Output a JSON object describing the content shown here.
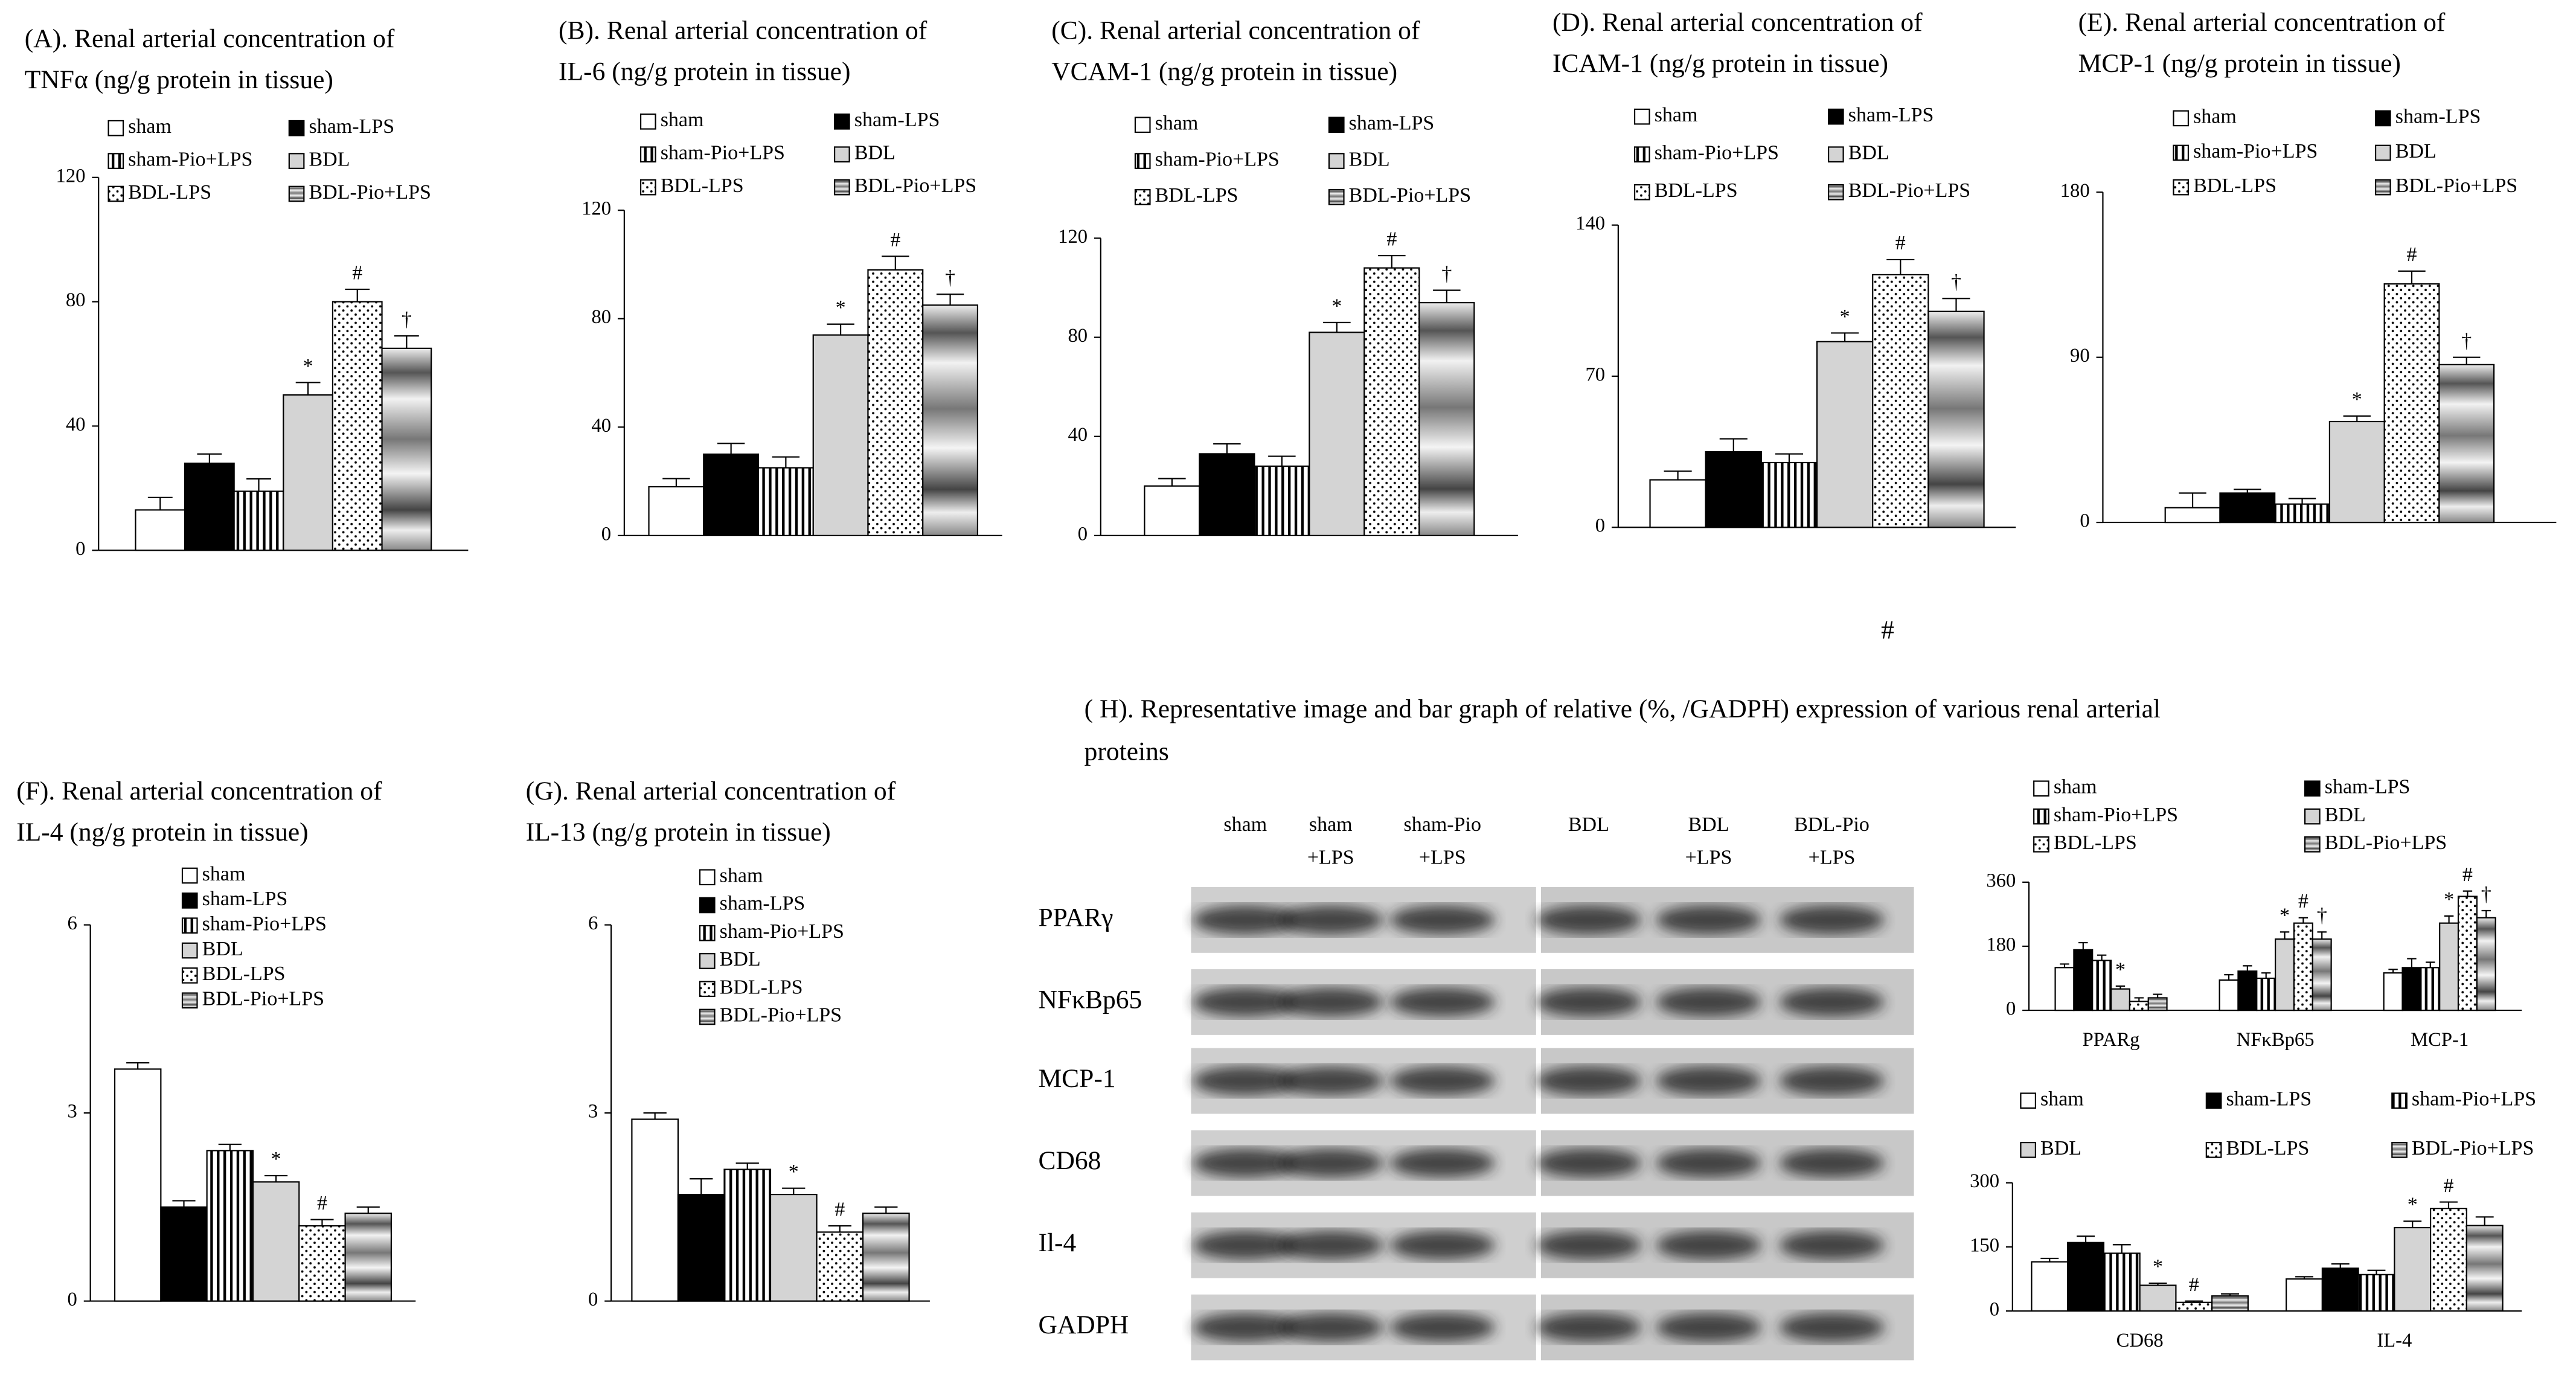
{
  "chart_data": [
    {
      "type": "bar",
      "title": [
        "(A). Renal arterial concentration of",
        "TNFα (ng/g protein in tissue)"
      ],
      "ylim": [
        0,
        120
      ],
      "yticks": [
        0,
        40,
        80,
        120
      ],
      "legend_columns": 2,
      "series": [
        {
          "name": "sham",
          "color": "#ffffff",
          "values": [
            13
          ],
          "errors": [
            4
          ]
        },
        {
          "name": "sham-LPS",
          "color": "#000000",
          "values": [
            28
          ],
          "errors": [
            3
          ]
        },
        {
          "name": "sham-Pio+LPS",
          "color": "#ffffff",
          "pattern": "vertical-stripes",
          "values": [
            19
          ],
          "errors": [
            4
          ]
        },
        {
          "name": "BDL",
          "color": "#d4d4d4",
          "values": [
            50
          ],
          "errors": [
            4
          ],
          "annotations": [
            "*"
          ]
        },
        {
          "name": "BDL-LPS",
          "color": "#ffffff",
          "pattern": "dots",
          "values": [
            80
          ],
          "errors": [
            4
          ],
          "annotations": [
            "#"
          ]
        },
        {
          "name": "BDL-Pio+LPS",
          "color": "#9a9a9a",
          "pattern": "bands",
          "values": [
            65
          ],
          "errors": [
            4
          ],
          "annotations": [
            "†"
          ]
        }
      ]
    },
    {
      "type": "bar",
      "title": [
        "(B). Renal arterial concentration of",
        "IL-6 (ng/g protein in tissue)"
      ],
      "ylim": [
        0,
        120
      ],
      "yticks": [
        0,
        40,
        80,
        120
      ],
      "legend_columns": 2,
      "series": [
        {
          "name": "sham",
          "color": "#ffffff",
          "values": [
            18
          ],
          "errors": [
            3
          ]
        },
        {
          "name": "sham-LPS",
          "color": "#000000",
          "values": [
            30
          ],
          "errors": [
            4
          ]
        },
        {
          "name": "sham-Pio+LPS",
          "color": "#ffffff",
          "pattern": "vertical-stripes",
          "values": [
            25
          ],
          "errors": [
            4
          ]
        },
        {
          "name": "BDL",
          "color": "#d4d4d4",
          "values": [
            74
          ],
          "errors": [
            4
          ],
          "annotations": [
            "*"
          ]
        },
        {
          "name": "BDL-LPS",
          "color": "#ffffff",
          "pattern": "dots",
          "values": [
            98
          ],
          "errors": [
            5
          ],
          "annotations": [
            "#"
          ]
        },
        {
          "name": "BDL-Pio+LPS",
          "color": "#9a9a9a",
          "pattern": "bands",
          "values": [
            85
          ],
          "errors": [
            4
          ],
          "annotations": [
            "†"
          ]
        }
      ]
    },
    {
      "type": "bar",
      "title": [
        "(C). Renal arterial concentration of",
        "VCAM-1 (ng/g protein in tissue)"
      ],
      "ylim": [
        0,
        120
      ],
      "yticks": [
        0,
        40,
        80,
        120
      ],
      "legend_columns": 2,
      "series": [
        {
          "name": "sham",
          "color": "#ffffff",
          "values": [
            20
          ],
          "errors": [
            3
          ]
        },
        {
          "name": "sham-LPS",
          "color": "#000000",
          "values": [
            33
          ],
          "errors": [
            4
          ]
        },
        {
          "name": "sham-Pio+LPS",
          "color": "#ffffff",
          "pattern": "vertical-stripes",
          "values": [
            28
          ],
          "errors": [
            4
          ]
        },
        {
          "name": "BDL",
          "color": "#d4d4d4",
          "values": [
            82
          ],
          "errors": [
            4
          ],
          "annotations": [
            "*"
          ]
        },
        {
          "name": "BDL-LPS",
          "color": "#ffffff",
          "pattern": "dots",
          "values": [
            108
          ],
          "errors": [
            5
          ],
          "annotations": [
            "#"
          ]
        },
        {
          "name": "BDL-Pio+LPS",
          "color": "#9a9a9a",
          "pattern": "bands",
          "values": [
            94
          ],
          "errors": [
            5
          ],
          "annotations": [
            "†"
          ]
        }
      ]
    },
    {
      "type": "bar",
      "title": [
        "(D). Renal arterial concentration of",
        "ICAM-1 (ng/g protein in tissue)"
      ],
      "ylim": [
        0,
        140
      ],
      "yticks": [
        0,
        70,
        140
      ],
      "legend_columns": 2,
      "series": [
        {
          "name": "sham",
          "color": "#ffffff",
          "values": [
            22
          ],
          "errors": [
            4
          ]
        },
        {
          "name": "sham-LPS",
          "color": "#000000",
          "values": [
            35
          ],
          "errors": [
            6
          ]
        },
        {
          "name": "sham-Pio+LPS",
          "color": "#ffffff",
          "pattern": "vertical-stripes",
          "values": [
            30
          ],
          "errors": [
            4
          ]
        },
        {
          "name": "BDL",
          "color": "#d4d4d4",
          "values": [
            86
          ],
          "errors": [
            4
          ],
          "annotations": [
            "*"
          ]
        },
        {
          "name": "BDL-LPS",
          "color": "#ffffff",
          "pattern": "dots",
          "values": [
            117
          ],
          "errors": [
            7
          ],
          "annotations": [
            "#"
          ]
        },
        {
          "name": "BDL-Pio+LPS",
          "color": "#9a9a9a",
          "pattern": "bands",
          "values": [
            100
          ],
          "errors": [
            6
          ],
          "annotations": [
            "†"
          ]
        }
      ]
    },
    {
      "type": "bar",
      "title": [
        "(E). Renal arterial concentration of",
        "MCP-1 (ng/g protein in tissue)"
      ],
      "ylim": [
        0,
        180
      ],
      "yticks": [
        0,
        90,
        180
      ],
      "legend_columns": 2,
      "series": [
        {
          "name": "sham",
          "color": "#ffffff",
          "values": [
            8
          ],
          "errors": [
            8
          ]
        },
        {
          "name": "sham-LPS",
          "color": "#000000",
          "values": [
            16
          ],
          "errors": [
            2
          ]
        },
        {
          "name": "sham-Pio+LPS",
          "color": "#ffffff",
          "pattern": "vertical-stripes",
          "values": [
            10
          ],
          "errors": [
            3
          ]
        },
        {
          "name": "BDL",
          "color": "#d4d4d4",
          "values": [
            55
          ],
          "errors": [
            3
          ],
          "annotations": [
            "*"
          ]
        },
        {
          "name": "BDL-LPS",
          "color": "#ffffff",
          "pattern": "dots",
          "values": [
            130
          ],
          "errors": [
            7
          ],
          "annotations": [
            "#"
          ]
        },
        {
          "name": "BDL-Pio+LPS",
          "color": "#9a9a9a",
          "pattern": "bands",
          "values": [
            86
          ],
          "errors": [
            4
          ],
          "annotations": [
            "†"
          ]
        }
      ]
    },
    {
      "type": "bar",
      "title": [
        "(F). Renal arterial concentration of",
        "IL-4 (ng/g protein in tissue)"
      ],
      "ylim": [
        0,
        6
      ],
      "yticks": [
        0,
        3,
        6
      ],
      "legend_columns": 1,
      "series": [
        {
          "name": "sham",
          "color": "#ffffff",
          "values": [
            3.7
          ],
          "errors": [
            0.1
          ]
        },
        {
          "name": "sham-LPS",
          "color": "#000000",
          "values": [
            1.5
          ],
          "errors": [
            0.1
          ]
        },
        {
          "name": "sham-Pio+LPS",
          "color": "#ffffff",
          "pattern": "vertical-stripes",
          "values": [
            2.4
          ],
          "errors": [
            0.1
          ]
        },
        {
          "name": "BDL",
          "color": "#d4d4d4",
          "values": [
            1.9
          ],
          "errors": [
            0.1
          ],
          "annotations": [
            "*"
          ]
        },
        {
          "name": "BDL-LPS",
          "color": "#ffffff",
          "pattern": "dots",
          "values": [
            1.2
          ],
          "errors": [
            0.1
          ],
          "annotations": [
            "#"
          ]
        },
        {
          "name": "BDL-Pio+LPS",
          "color": "#9a9a9a",
          "pattern": "bands",
          "values": [
            1.4
          ],
          "errors": [
            0.1
          ]
        }
      ]
    },
    {
      "type": "bar",
      "title": [
        "(G). Renal arterial concentration of",
        "IL-13 (ng/g protein in tissue)"
      ],
      "ylim": [
        0,
        6
      ],
      "yticks": [
        0,
        3,
        6
      ],
      "legend_columns": 1,
      "series": [
        {
          "name": "sham",
          "color": "#ffffff",
          "values": [
            2.9
          ],
          "errors": [
            0.1
          ]
        },
        {
          "name": "sham-LPS",
          "color": "#000000",
          "values": [
            1.7
          ],
          "errors": [
            0.25
          ]
        },
        {
          "name": "sham-Pio+LPS",
          "color": "#ffffff",
          "pattern": "vertical-stripes",
          "values": [
            2.1
          ],
          "errors": [
            0.1
          ]
        },
        {
          "name": "BDL",
          "color": "#d4d4d4",
          "values": [
            1.7
          ],
          "errors": [
            0.1
          ],
          "annotations": [
            "*"
          ]
        },
        {
          "name": "BDL-LPS",
          "color": "#ffffff",
          "pattern": "dots",
          "values": [
            1.1
          ],
          "errors": [
            0.1
          ],
          "annotations": [
            "#"
          ]
        },
        {
          "name": "BDL-Pio+LPS",
          "color": "#9a9a9a",
          "pattern": "bands",
          "values": [
            1.4
          ],
          "errors": [
            0.1
          ]
        }
      ]
    },
    {
      "type": "bar",
      "categories": [
        "PPARg",
        "NFκBp65",
        "MCP-1"
      ],
      "ylim": [
        0,
        360
      ],
      "yticks": [
        0,
        180,
        360
      ],
      "legend_columns": 2,
      "series": [
        {
          "name": "sham",
          "color": "#ffffff",
          "values": [
            120,
            85,
            105
          ],
          "errors": [
            10,
            15,
            10
          ]
        },
        {
          "name": "sham-LPS",
          "color": "#000000",
          "values": [
            170,
            110,
            120
          ],
          "errors": [
            20,
            15,
            25
          ]
        },
        {
          "name": "sham-Pio+LPS",
          "color": "#ffffff",
          "pattern": "vertical-stripes",
          "values": [
            140,
            90,
            120
          ],
          "errors": [
            15,
            15,
            15
          ]
        },
        {
          "name": "BDL",
          "color": "#d4d4d4",
          "values": [
            60,
            200,
            245
          ],
          "errors": [
            8,
            20,
            20
          ],
          "annotations": [
            "*",
            "*",
            "*"
          ]
        },
        {
          "name": "BDL-LPS",
          "color": "#ffffff",
          "pattern": "dots",
          "values": [
            25,
            245,
            320
          ],
          "errors": [
            10,
            15,
            15
          ],
          "annotations": [
            null,
            "#",
            "#"
          ]
        },
        {
          "name": "BDL-Pio+LPS",
          "color": "#9a9a9a",
          "pattern": "bands",
          "values": [
            35,
            200,
            260
          ],
          "errors": [
            10,
            20,
            20
          ],
          "annotations": [
            null,
            "†",
            "†"
          ]
        }
      ]
    },
    {
      "type": "bar",
      "categories": [
        "CD68",
        "IL-4"
      ],
      "ylim": [
        0,
        300
      ],
      "yticks": [
        0,
        150,
        300
      ],
      "legend_columns": 3,
      "series": [
        {
          "name": "sham",
          "color": "#ffffff",
          "values": [
            115,
            75
          ],
          "errors": [
            8,
            5
          ]
        },
        {
          "name": "sham-LPS",
          "color": "#000000",
          "values": [
            160,
            100
          ],
          "errors": [
            15,
            10
          ]
        },
        {
          "name": "sham-Pio+LPS",
          "color": "#ffffff",
          "pattern": "vertical-stripes",
          "values": [
            135,
            85
          ],
          "errors": [
            20,
            10
          ]
        },
        {
          "name": "BDL",
          "color": "#d4d4d4",
          "values": [
            60,
            195
          ],
          "errors": [
            5,
            15
          ],
          "annotations": [
            "*",
            "*"
          ]
        },
        {
          "name": "BDL-LPS",
          "color": "#ffffff",
          "pattern": "dots",
          "values": [
            20,
            240
          ],
          "errors": [
            3,
            15
          ],
          "annotations": [
            "#",
            "#"
          ]
        },
        {
          "name": "BDL-Pio+LPS",
          "color": "#9a9a9a",
          "pattern": "bands",
          "values": [
            35,
            200
          ],
          "errors": [
            5,
            20
          ]
        }
      ]
    }
  ],
  "blot": {
    "title": [
      "( H). Representative image and bar graph of relative (%, /GADPH) expression of various renal arterial",
      "proteins"
    ],
    "lanes": [
      [
        "sham"
      ],
      [
        "sham",
        "+LPS"
      ],
      [
        "sham-Pio",
        "+LPS"
      ],
      [
        "BDL"
      ],
      [
        "BDL",
        "+LPS"
      ],
      [
        "BDL-Pio",
        "+LPS"
      ]
    ],
    "rows": [
      "PPARγ",
      "NFκBp65",
      "MCP-1",
      "CD68",
      "Il-4",
      "GADPH"
    ]
  },
  "extra_labels": [
    "#"
  ]
}
